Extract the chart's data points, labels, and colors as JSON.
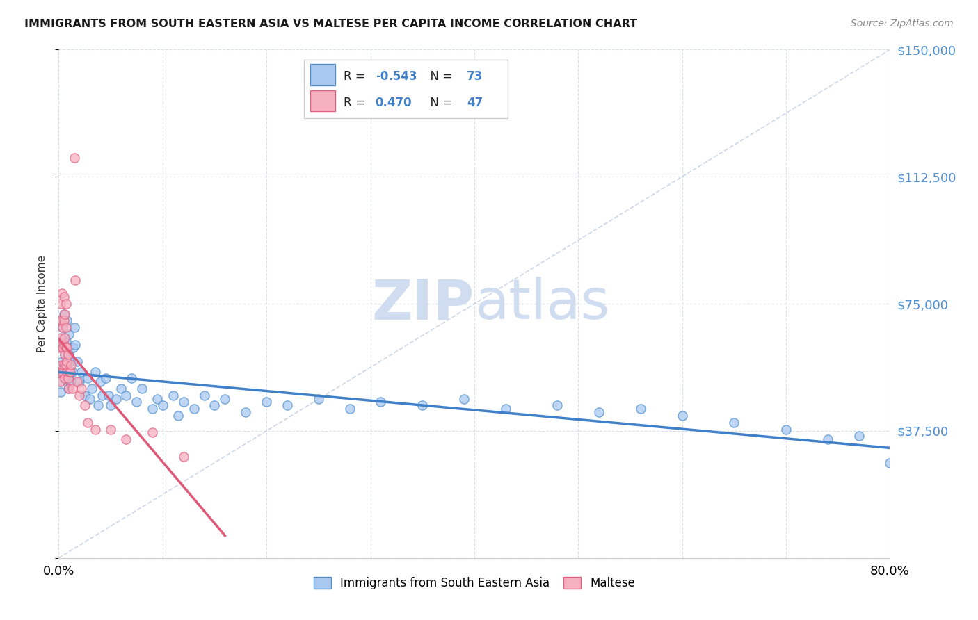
{
  "title": "IMMIGRANTS FROM SOUTH EASTERN ASIA VS MALTESE PER CAPITA INCOME CORRELATION CHART",
  "source": "Source: ZipAtlas.com",
  "ylabel": "Per Capita Income",
  "xmin": 0.0,
  "xmax": 0.8,
  "ymin": 0,
  "ymax": 150000,
  "yticks": [
    0,
    37500,
    75000,
    112500,
    150000
  ],
  "ytick_labels": [
    "",
    "$37,500",
    "$75,000",
    "$112,500",
    "$150,000"
  ],
  "xticks": [
    0.0,
    0.1,
    0.2,
    0.3,
    0.4,
    0.5,
    0.6,
    0.7,
    0.8
  ],
  "blue_R": -0.543,
  "blue_N": 73,
  "pink_R": 0.47,
  "pink_N": 47,
  "blue_color": "#a8c8f0",
  "pink_color": "#f5b0c0",
  "blue_edge_color": "#5090d0",
  "pink_edge_color": "#e06080",
  "blue_line_color": "#4080c8",
  "pink_line_color": "#e05878",
  "grid_color": "#d8dfe8",
  "watermark_color": "#d0ddf0",
  "background_color": "#ffffff",
  "blue_scatter_x": [
    0.001,
    0.002,
    0.002,
    0.003,
    0.003,
    0.004,
    0.004,
    0.005,
    0.005,
    0.006,
    0.006,
    0.007,
    0.007,
    0.008,
    0.008,
    0.009,
    0.009,
    0.01,
    0.01,
    0.011,
    0.012,
    0.013,
    0.014,
    0.015,
    0.016,
    0.018,
    0.02,
    0.022,
    0.025,
    0.028,
    0.03,
    0.032,
    0.035,
    0.038,
    0.04,
    0.042,
    0.045,
    0.048,
    0.05,
    0.055,
    0.06,
    0.065,
    0.07,
    0.075,
    0.08,
    0.09,
    0.095,
    0.1,
    0.11,
    0.115,
    0.12,
    0.13,
    0.14,
    0.15,
    0.16,
    0.18,
    0.2,
    0.22,
    0.25,
    0.28,
    0.31,
    0.35,
    0.39,
    0.43,
    0.48,
    0.52,
    0.56,
    0.6,
    0.65,
    0.7,
    0.74,
    0.77,
    0.8
  ],
  "blue_scatter_y": [
    52000,
    56000,
    49000,
    62000,
    58000,
    68000,
    55000,
    65000,
    72000,
    60000,
    57000,
    64000,
    53000,
    58000,
    70000,
    55000,
    50000,
    60000,
    66000,
    58000,
    52000,
    55000,
    62000,
    68000,
    63000,
    58000,
    52000,
    55000,
    48000,
    53000,
    47000,
    50000,
    55000,
    45000,
    52000,
    48000,
    53000,
    48000,
    45000,
    47000,
    50000,
    48000,
    53000,
    46000,
    50000,
    44000,
    47000,
    45000,
    48000,
    42000,
    46000,
    44000,
    48000,
    45000,
    47000,
    43000,
    46000,
    45000,
    47000,
    44000,
    46000,
    45000,
    47000,
    44000,
    45000,
    43000,
    44000,
    42000,
    40000,
    38000,
    35000,
    36000,
    28000
  ],
  "pink_scatter_x": [
    0.001,
    0.001,
    0.001,
    0.002,
    0.002,
    0.002,
    0.003,
    0.003,
    0.003,
    0.003,
    0.004,
    0.004,
    0.004,
    0.005,
    0.005,
    0.005,
    0.005,
    0.006,
    0.006,
    0.006,
    0.006,
    0.007,
    0.007,
    0.007,
    0.007,
    0.008,
    0.008,
    0.008,
    0.009,
    0.009,
    0.01,
    0.01,
    0.011,
    0.012,
    0.013,
    0.015,
    0.016,
    0.018,
    0.02,
    0.022,
    0.025,
    0.028,
    0.035,
    0.05,
    0.065,
    0.09,
    0.12
  ],
  "pink_scatter_y": [
    55000,
    62000,
    70000,
    52000,
    65000,
    75000,
    57000,
    63000,
    70000,
    78000,
    55000,
    62000,
    68000,
    57000,
    63000,
    70000,
    77000,
    53000,
    60000,
    65000,
    72000,
    57000,
    62000,
    68000,
    75000,
    55000,
    62000,
    58000,
    53000,
    60000,
    55000,
    50000,
    55000,
    57000,
    50000,
    118000,
    82000,
    52000,
    48000,
    50000,
    45000,
    40000,
    38000,
    38000,
    35000,
    37000,
    30000
  ]
}
